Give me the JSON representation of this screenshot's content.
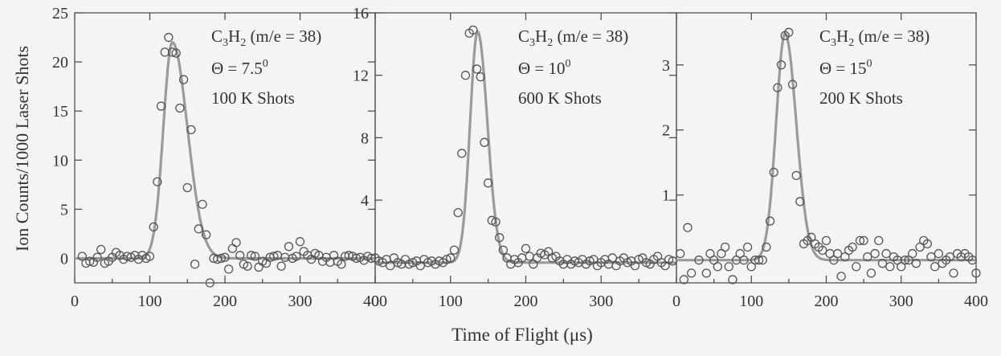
{
  "chart_data": [
    {
      "type": "scatter",
      "xlim": [
        0,
        400
      ],
      "ylim": [
        -2.5,
        25
      ],
      "xticks": [
        "0",
        "100",
        "200",
        "300",
        "400"
      ],
      "yticks": [
        "0",
        "5",
        "10",
        "15",
        "20",
        "25"
      ],
      "annotation": {
        "species_main": "C",
        "species_sub1": "3",
        "species_mid": "H",
        "species_sub2": "2",
        "mass": " (m/e = 38)",
        "theta": "Θ = 7.5",
        "theta_sup": "0",
        "shots": "100 K Shots"
      },
      "fit": {
        "baseline": 0,
        "center": 130,
        "amplitude": 22,
        "sigma_left": 12,
        "sigma_right": 20
      },
      "points": [
        [
          10,
          0.2
        ],
        [
          15,
          -0.5
        ],
        [
          20,
          -0.3
        ],
        [
          25,
          -0.4
        ],
        [
          30,
          0.1
        ],
        [
          35,
          0.9
        ],
        [
          40,
          -0.5
        ],
        [
          45,
          -0.3
        ],
        [
          50,
          0.1
        ],
        [
          55,
          0.6
        ],
        [
          60,
          0.3
        ],
        [
          65,
          -0.1
        ],
        [
          70,
          0.2
        ],
        [
          75,
          0.1
        ],
        [
          80,
          0.3
        ],
        [
          85,
          -0.1
        ],
        [
          90,
          0.3
        ],
        [
          95,
          0.0
        ],
        [
          100,
          0.2
        ],
        [
          105,
          3.2
        ],
        [
          110,
          7.8
        ],
        [
          115,
          15.5
        ],
        [
          120,
          21.0
        ],
        [
          125,
          22.5
        ],
        [
          130,
          21.0
        ],
        [
          135,
          20.9
        ],
        [
          140,
          15.3
        ],
        [
          145,
          18.2
        ],
        [
          150,
          7.2
        ],
        [
          155,
          13.1
        ],
        [
          160,
          -0.6
        ],
        [
          165,
          3.0
        ],
        [
          170,
          5.5
        ],
        [
          175,
          2.4
        ],
        [
          180,
          -2.5
        ],
        [
          185,
          0.0
        ],
        [
          190,
          -0.1
        ],
        [
          195,
          0.0
        ],
        [
          200,
          0.1
        ],
        [
          205,
          -1.1
        ],
        [
          210,
          1.0
        ],
        [
          215,
          1.6
        ],
        [
          220,
          0.3
        ],
        [
          225,
          -0.6
        ],
        [
          230,
          -0.8
        ],
        [
          235,
          0.3
        ],
        [
          240,
          0.2
        ],
        [
          245,
          -0.9
        ],
        [
          250,
          -0.3
        ],
        [
          255,
          -0.5
        ],
        [
          260,
          0.1
        ],
        [
          265,
          0.2
        ],
        [
          270,
          0.3
        ],
        [
          275,
          -0.8
        ],
        [
          280,
          0.1
        ],
        [
          285,
          1.2
        ],
        [
          290,
          0.0
        ],
        [
          295,
          0.2
        ],
        [
          300,
          1.7
        ],
        [
          305,
          0.7
        ],
        [
          310,
          0.3
        ],
        [
          315,
          -0.1
        ],
        [
          320,
          0.5
        ],
        [
          325,
          0.3
        ],
        [
          330,
          -0.3
        ],
        [
          335,
          0.1
        ],
        [
          340,
          -0.4
        ],
        [
          345,
          0.3
        ],
        [
          350,
          -0.3
        ],
        [
          355,
          -0.6
        ],
        [
          360,
          0.2
        ],
        [
          365,
          0.3
        ],
        [
          370,
          0.2
        ],
        [
          375,
          0.0
        ],
        [
          380,
          0.1
        ],
        [
          385,
          -0.2
        ],
        [
          390,
          0.2
        ],
        [
          395,
          0.0
        ]
      ]
    },
    {
      "type": "scatter",
      "xlim": [
        0,
        400
      ],
      "ylim": [
        -1.3,
        16
      ],
      "xticks": [
        "0",
        "100",
        "200",
        "300"
      ],
      "yticks": [
        "4",
        "8",
        "12",
        "16"
      ],
      "annotation": {
        "species_main": "C",
        "species_sub1": "3",
        "species_mid": "H",
        "species_sub2": "2",
        "mass": " (m/e = 38)",
        "theta": "Θ = 10",
        "theta_sup": "0",
        "shots": "600 K Shots"
      },
      "fit": {
        "baseline": 0,
        "center": 136,
        "amplitude": 14.8,
        "sigma_left": 10,
        "sigma_right": 13
      },
      "points": [
        [
          0,
          0.3
        ],
        [
          5,
          0.1
        ],
        [
          10,
          0.0
        ],
        [
          15,
          0.2
        ],
        [
          20,
          -0.2
        ],
        [
          25,
          0.3
        ],
        [
          30,
          0.0
        ],
        [
          35,
          -0.1
        ],
        [
          40,
          0.2
        ],
        [
          45,
          -0.1
        ],
        [
          50,
          0.0
        ],
        [
          55,
          0.1
        ],
        [
          60,
          -0.2
        ],
        [
          65,
          0.2
        ],
        [
          70,
          0.0
        ],
        [
          75,
          0.1
        ],
        [
          80,
          -0.1
        ],
        [
          85,
          0.1
        ],
        [
          90,
          0.0
        ],
        [
          95,
          0.2
        ],
        [
          100,
          0.3
        ],
        [
          105,
          0.8
        ],
        [
          110,
          3.2
        ],
        [
          115,
          7.0
        ],
        [
          120,
          12.0
        ],
        [
          125,
          14.7
        ],
        [
          130,
          14.9
        ],
        [
          135,
          12.4
        ],
        [
          140,
          11.9
        ],
        [
          145,
          7.7
        ],
        [
          150,
          5.1
        ],
        [
          155,
          2.7
        ],
        [
          160,
          2.6
        ],
        [
          165,
          1.6
        ],
        [
          170,
          0.8
        ],
        [
          175,
          0.3
        ],
        [
          180,
          -0.1
        ],
        [
          185,
          0.2
        ],
        [
          190,
          0.0
        ],
        [
          195,
          0.3
        ],
        [
          200,
          0.9
        ],
        [
          205,
          0.4
        ],
        [
          210,
          -0.1
        ],
        [
          215,
          0.3
        ],
        [
          220,
          0.6
        ],
        [
          225,
          0.5
        ],
        [
          230,
          0.7
        ],
        [
          235,
          0.3
        ],
        [
          240,
          0.4
        ],
        [
          245,
          0.1
        ],
        [
          250,
          -0.1
        ],
        [
          255,
          0.2
        ],
        [
          260,
          -0.1
        ],
        [
          265,
          0.1
        ],
        [
          270,
          0.0
        ],
        [
          275,
          0.2
        ],
        [
          280,
          -0.1
        ],
        [
          285,
          0.1
        ],
        [
          290,
          0.2
        ],
        [
          295,
          -0.2
        ],
        [
          300,
          0.0
        ],
        [
          305,
          0.2
        ],
        [
          310,
          -0.1
        ],
        [
          315,
          0.3
        ],
        [
          320,
          -0.2
        ],
        [
          325,
          0.1
        ],
        [
          330,
          0.3
        ],
        [
          335,
          0.0
        ],
        [
          340,
          0.1
        ],
        [
          345,
          -0.2
        ],
        [
          350,
          0.2
        ],
        [
          355,
          0.3
        ],
        [
          360,
          0.0
        ],
        [
          365,
          -0.1
        ],
        [
          370,
          0.2
        ],
        [
          375,
          0.4
        ],
        [
          380,
          0.0
        ],
        [
          385,
          -0.2
        ],
        [
          390,
          0.2
        ],
        [
          395,
          0.1
        ]
      ]
    },
    {
      "type": "scatter",
      "xlim": [
        0,
        400
      ],
      "ylim": [
        -0.35,
        3.8
      ],
      "xticks": [
        "0",
        "100",
        "200",
        "300",
        "400"
      ],
      "yticks": [
        "1",
        "2",
        "3"
      ],
      "annotation": {
        "species_main": "C",
        "species_sub1": "3",
        "species_mid": "H",
        "species_sub2": "2",
        "mass": " (m/e = 38)",
        "theta": "Θ = 15",
        "theta_sup": "0",
        "shots": "200 K Shots"
      },
      "fit": {
        "baseline": 0,
        "center": 145,
        "amplitude": 3.48,
        "sigma_left": 12,
        "sigma_right": 15
      },
      "points": [
        [
          5,
          0.1
        ],
        [
          10,
          -0.3
        ],
        [
          15,
          0.5
        ],
        [
          20,
          -0.2
        ],
        [
          30,
          0.0
        ],
        [
          40,
          -0.2
        ],
        [
          45,
          0.1
        ],
        [
          50,
          0.0
        ],
        [
          55,
          -0.1
        ],
        [
          60,
          0.1
        ],
        [
          65,
          0.2
        ],
        [
          70,
          -0.1
        ],
        [
          75,
          -0.3
        ],
        [
          80,
          0.0
        ],
        [
          85,
          0.1
        ],
        [
          90,
          0.0
        ],
        [
          95,
          0.2
        ],
        [
          100,
          -0.1
        ],
        [
          105,
          0.0
        ],
        [
          110,
          0.0
        ],
        [
          115,
          0.0
        ],
        [
          120,
          0.2
        ],
        [
          125,
          0.6
        ],
        [
          130,
          1.35
        ],
        [
          135,
          2.65
        ],
        [
          140,
          3.0
        ],
        [
          145,
          3.45
        ],
        [
          150,
          3.5
        ],
        [
          155,
          2.7
        ],
        [
          160,
          1.3
        ],
        [
          165,
          0.9
        ],
        [
          170,
          0.25
        ],
        [
          175,
          0.3
        ],
        [
          180,
          0.35
        ],
        [
          185,
          0.25
        ],
        [
          190,
          0.2
        ],
        [
          195,
          0.15
        ],
        [
          200,
          0.3
        ],
        [
          205,
          0.1
        ],
        [
          210,
          0.0
        ],
        [
          215,
          0.1
        ],
        [
          220,
          -0.25
        ],
        [
          225,
          0.05
        ],
        [
          230,
          0.15
        ],
        [
          235,
          0.2
        ],
        [
          240,
          -0.1
        ],
        [
          245,
          0.3
        ],
        [
          250,
          0.3
        ],
        [
          255,
          0.05
        ],
        [
          260,
          -0.2
        ],
        [
          265,
          0.1
        ],
        [
          270,
          0.3
        ],
        [
          275,
          -0.05
        ],
        [
          280,
          0.1
        ],
        [
          285,
          -0.1
        ],
        [
          290,
          0.05
        ],
        [
          295,
          0.0
        ],
        [
          300,
          -0.1
        ],
        [
          305,
          0.0
        ],
        [
          310,
          0.0
        ],
        [
          315,
          0.1
        ],
        [
          320,
          -0.05
        ],
        [
          325,
          0.2
        ],
        [
          330,
          0.3
        ],
        [
          335,
          0.25
        ],
        [
          340,
          0.05
        ],
        [
          345,
          -0.1
        ],
        [
          350,
          0.1
        ],
        [
          355,
          -0.05
        ],
        [
          360,
          0.0
        ],
        [
          365,
          0.05
        ],
        [
          370,
          -0.2
        ],
        [
          375,
          0.1
        ],
        [
          380,
          0.05
        ],
        [
          385,
          0.1
        ],
        [
          390,
          0.05
        ],
        [
          395,
          0.0
        ],
        [
          400,
          -0.2
        ]
      ]
    }
  ],
  "xlabel": "Time of Flight (μs)",
  "ylabel": "Ion Counts/1000 Laser Shots"
}
